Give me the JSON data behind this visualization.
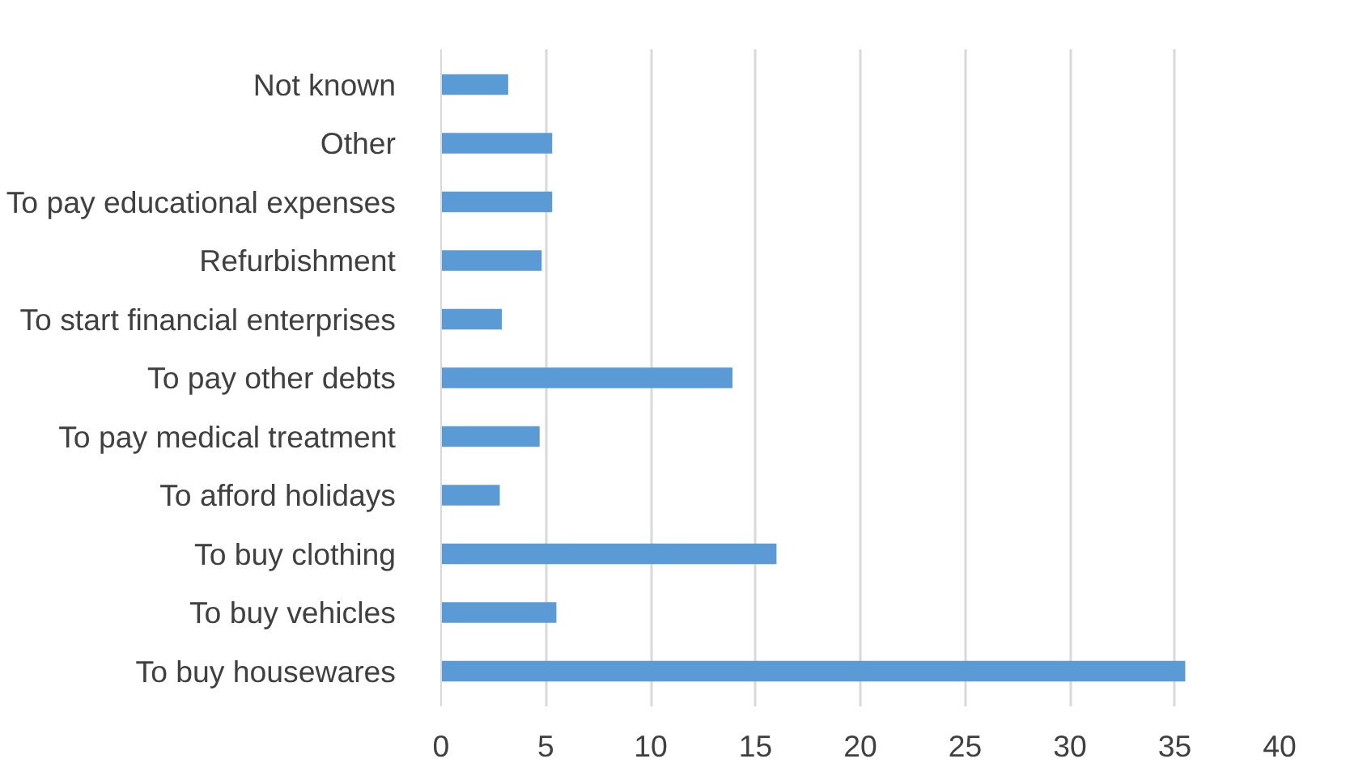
{
  "chart_data": {
    "type": "bar",
    "orientation": "horizontal",
    "categories": [
      "Not known",
      "Other",
      "To pay educational expenses",
      "Refurbishment",
      "To start financial enterprises",
      "To pay other debts",
      "To pay medical treatment",
      "To afford holidays",
      "To buy clothing",
      "To buy vehicles",
      "To buy housewares"
    ],
    "values": [
      3.2,
      5.3,
      5.3,
      4.8,
      2.9,
      13.9,
      4.7,
      2.8,
      16,
      5.5,
      35.5
    ],
    "color": "#5b9bd5",
    "xlim": [
      0,
      40
    ],
    "xticks": [
      0,
      5,
      10,
      15,
      20,
      25,
      30,
      35,
      40
    ],
    "grid": "x"
  }
}
